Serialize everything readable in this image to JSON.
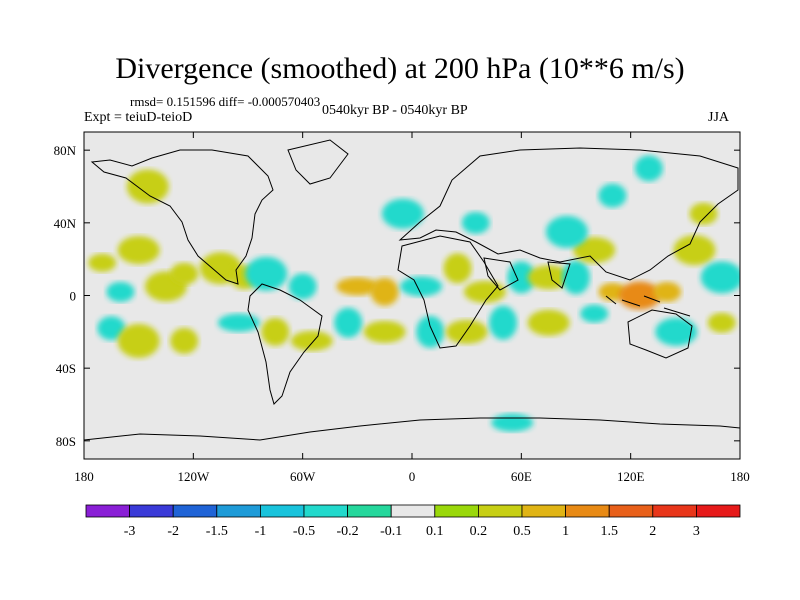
{
  "chart_data": {
    "type": "heatmap",
    "title": "Divergence (smoothed) at 200 hPa (10**6 m/s)",
    "stats": "rmsd= 0.151596 diff= -0.000570403",
    "experiment": "Expt = teiuD-teioD",
    "period": "0540kyr BP - 0540kyr BP",
    "season": "JJA",
    "x_axis": {
      "range": [
        -180,
        180
      ],
      "tick_values": [
        -180,
        -120,
        -60,
        0,
        60,
        120,
        180
      ],
      "tick_labels": [
        "180",
        "120W",
        "60W",
        "0",
        "60E",
        "120E",
        "180"
      ]
    },
    "y_axis": {
      "range": [
        -90,
        90
      ],
      "tick_values": [
        80,
        40,
        0,
        -40,
        -80
      ],
      "tick_labels": [
        "80N",
        "40N",
        "0",
        "40S",
        "80S"
      ]
    },
    "colorbar": {
      "labels": [
        "-3",
        "-2",
        "-1.5",
        "-1",
        "-0.5",
        "-0.2",
        "-0.1",
        "0.1",
        "0.2",
        "0.5",
        "1",
        "1.5",
        "2",
        "3"
      ],
      "colors": [
        "#8a1fd6",
        "#3a3ad8",
        "#1f63d6",
        "#1e9bd8",
        "#19c3dc",
        "#22d9cc",
        "#25d79c",
        "#e8e8e8",
        "#9ad80a",
        "#c7cf15",
        "#e0b415",
        "#e88a15",
        "#e8601a",
        "#e8361a",
        "#e61a1a"
      ]
    },
    "anomalies": [
      {
        "lon": -170,
        "lat": 18,
        "value": 0.3
      },
      {
        "lon": -150,
        "lat": 25,
        "value": 0.2
      },
      {
        "lon": -160,
        "lat": 2,
        "value": -0.3
      },
      {
        "lon": -135,
        "lat": 5,
        "value": 0.3
      },
      {
        "lon": -125,
        "lat": 12,
        "value": 0.2
      },
      {
        "lon": -105,
        "lat": 15,
        "value": 0.3
      },
      {
        "lon": -92,
        "lat": 10,
        "value": 0.4
      },
      {
        "lon": -80,
        "lat": 12,
        "value": -0.3
      },
      {
        "lon": -60,
        "lat": 5,
        "value": -0.3
      },
      {
        "lon": -30,
        "lat": 5,
        "value": 0.5
      },
      {
        "lon": -15,
        "lat": 2,
        "value": 0.7
      },
      {
        "lon": 5,
        "lat": 5,
        "value": -0.3
      },
      {
        "lon": 25,
        "lat": 15,
        "value": 0.3
      },
      {
        "lon": 40,
        "lat": 2,
        "value": 0.3
      },
      {
        "lon": 60,
        "lat": 10,
        "value": -0.3
      },
      {
        "lon": 75,
        "lat": 10,
        "value": 0.3
      },
      {
        "lon": 90,
        "lat": 10,
        "value": -0.3
      },
      {
        "lon": 100,
        "lat": 25,
        "value": 0.2
      },
      {
        "lon": 110,
        "lat": 2,
        "value": 0.8
      },
      {
        "lon": 125,
        "lat": 0,
        "value": 1.1
      },
      {
        "lon": 140,
        "lat": 2,
        "value": 0.7
      },
      {
        "lon": 155,
        "lat": 25,
        "value": 0.3
      },
      {
        "lon": 160,
        "lat": 45,
        "value": 0.3
      },
      {
        "lon": 170,
        "lat": 10,
        "value": -0.3
      },
      {
        "lon": -165,
        "lat": -18,
        "value": -0.3
      },
      {
        "lon": -150,
        "lat": -25,
        "value": 0.3
      },
      {
        "lon": -125,
        "lat": -25,
        "value": 0.3
      },
      {
        "lon": -95,
        "lat": -15,
        "value": -0.3
      },
      {
        "lon": -75,
        "lat": -20,
        "value": 0.3
      },
      {
        "lon": -55,
        "lat": -25,
        "value": 0.3
      },
      {
        "lon": -35,
        "lat": -15,
        "value": -0.3
      },
      {
        "lon": -15,
        "lat": -20,
        "value": 0.3
      },
      {
        "lon": 10,
        "lat": -20,
        "value": -0.3
      },
      {
        "lon": 30,
        "lat": -20,
        "value": 0.3
      },
      {
        "lon": 50,
        "lat": -15,
        "value": -0.3
      },
      {
        "lon": 75,
        "lat": -15,
        "value": 0.3
      },
      {
        "lon": 100,
        "lat": -10,
        "value": -0.3
      },
      {
        "lon": 145,
        "lat": -20,
        "value": -0.3
      },
      {
        "lon": 170,
        "lat": -15,
        "value": 0.3
      },
      {
        "lon": -5,
        "lat": 45,
        "value": -0.3
      },
      {
        "lon": 35,
        "lat": 40,
        "value": -0.3
      },
      {
        "lon": 85,
        "lat": 35,
        "value": -0.3
      },
      {
        "lon": 110,
        "lat": 55,
        "value": -0.3
      },
      {
        "lon": -145,
        "lat": 60,
        "value": 0.2
      },
      {
        "lon": 130,
        "lat": 70,
        "value": -0.3
      },
      {
        "lon": 55,
        "lat": -70,
        "value": -0.3
      }
    ]
  }
}
